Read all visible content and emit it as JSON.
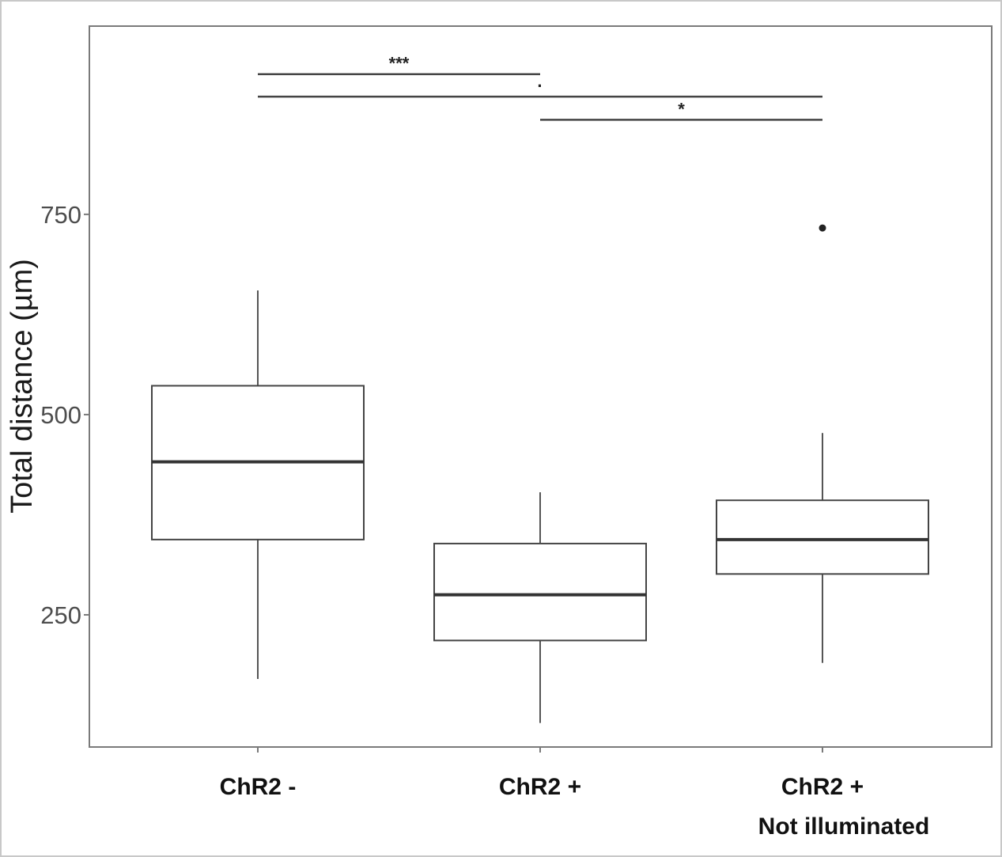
{
  "chart_data": {
    "type": "box",
    "title": "",
    "xlabel": "",
    "ylabel": "Total distance (µm)",
    "ylim": [
      85,
      985
    ],
    "yticks": [
      250,
      500,
      750
    ],
    "grid": false,
    "categories": [
      {
        "lines": [
          "ChR2 -"
        ]
      },
      {
        "lines": [
          "ChR2 +"
        ]
      },
      {
        "lines": [
          "ChR2 +",
          "Not illuminated"
        ]
      }
    ],
    "boxes": [
      {
        "whisker_low": 170,
        "q1": 344,
        "median": 441,
        "q3": 536,
        "whisker_high": 655,
        "outliers": []
      },
      {
        "whisker_low": 115,
        "q1": 218,
        "median": 275,
        "q3": 339,
        "whisker_high": 403,
        "outliers": []
      },
      {
        "whisker_low": 190,
        "q1": 301,
        "median": 344,
        "q3": 393,
        "whisker_high": 477,
        "outliers": [
          733
        ]
      }
    ],
    "significance": [
      {
        "from": 0,
        "to": 1,
        "y": 925,
        "label": "***"
      },
      {
        "from": 0,
        "to": 2,
        "y": 897,
        "label": "·"
      },
      {
        "from": 1,
        "to": 2,
        "y": 868,
        "label": "*"
      }
    ]
  }
}
